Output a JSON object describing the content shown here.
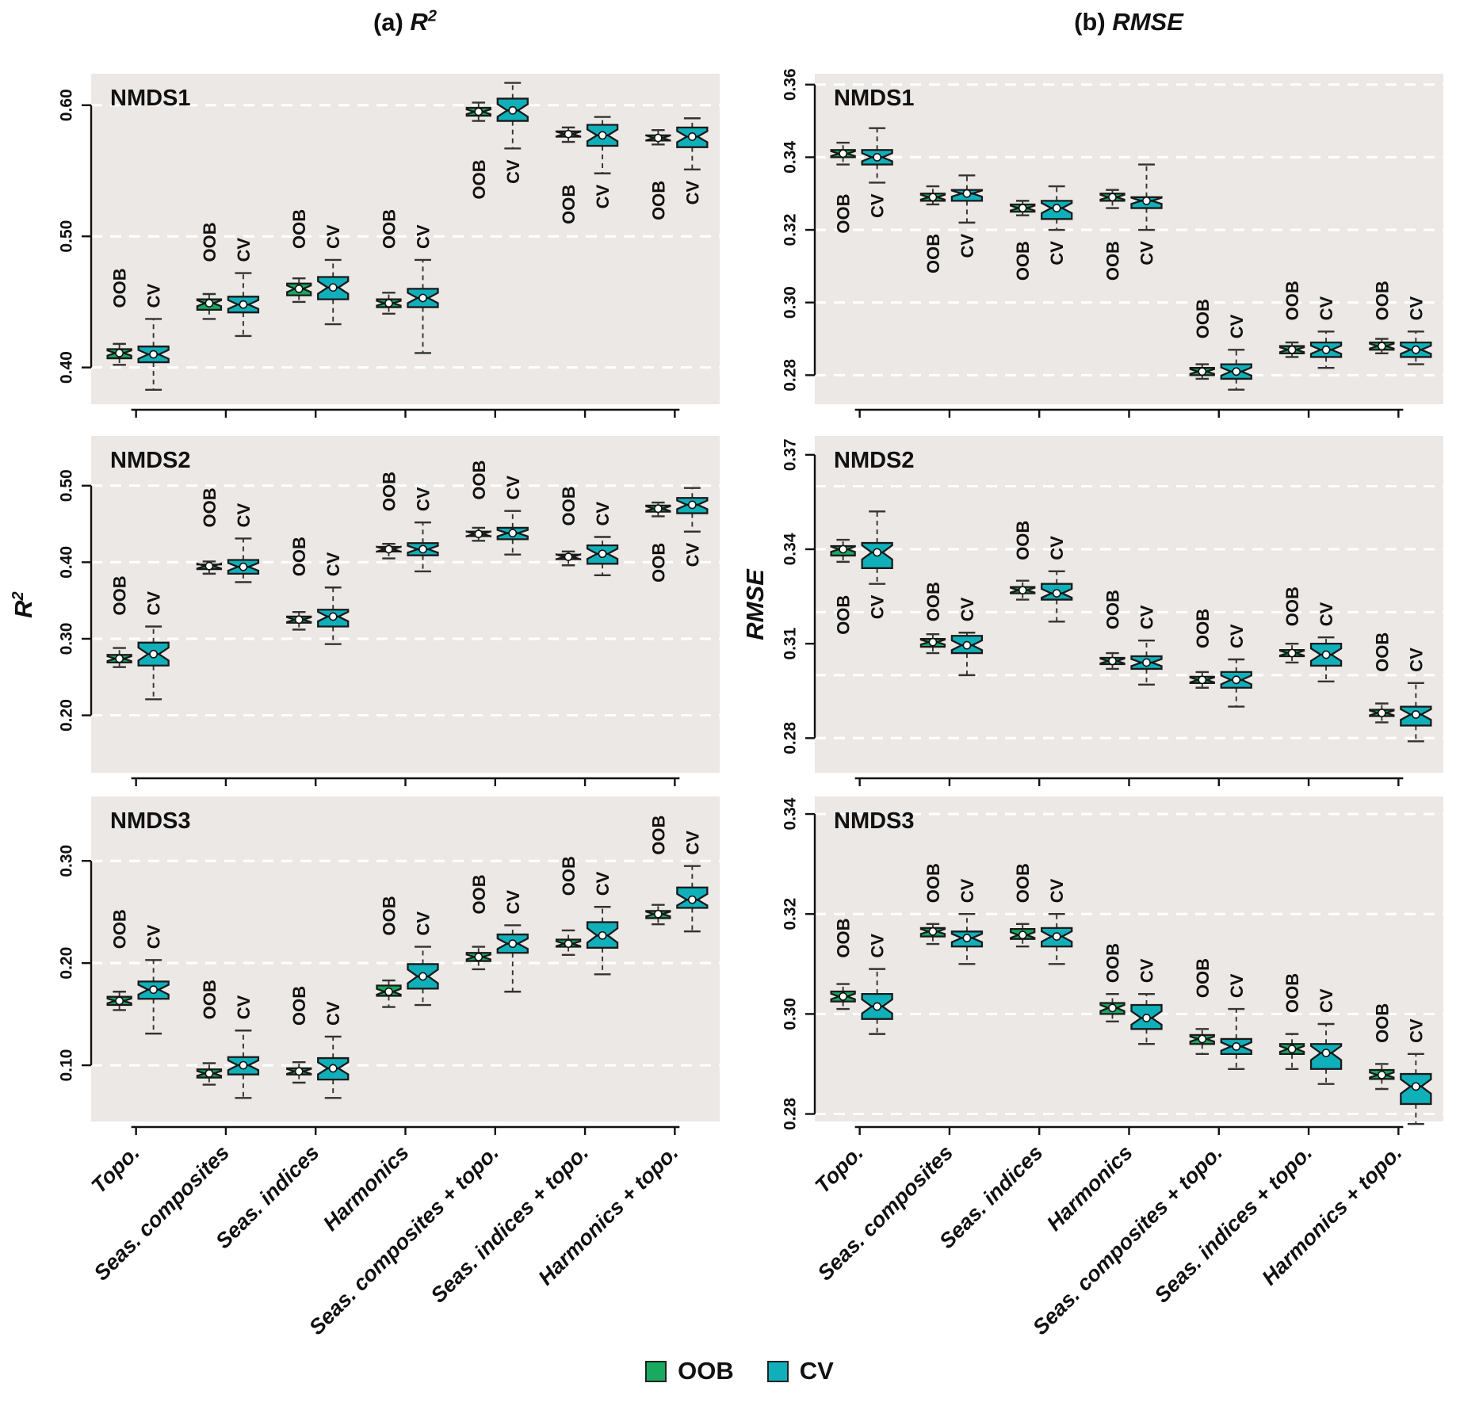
{
  "titles": {
    "a_prefix": "(a)",
    "a_metric": "R",
    "a_sup": "2",
    "b_prefix": "(b)",
    "b_metric": "RMSE"
  },
  "y_axis_labels": {
    "left_metric": "R",
    "left_sup": "2",
    "right_metric": "RMSE"
  },
  "legend": {
    "items": [
      {
        "label": "OOB",
        "color": "#17aa60"
      },
      {
        "label": "CV",
        "color": "#10b0ba"
      }
    ]
  },
  "colors": {
    "oob_fill": "#17aa60",
    "cv_fill": "#10b0ba",
    "panel_bg": "#ece8e5",
    "gridline": "#ffffff",
    "box_stroke": "#1a1a1a",
    "whisker": "#333333"
  },
  "chart_data": {
    "type": "boxplot",
    "categories": [
      "Topo.",
      "Seas. composites",
      "Seas. indices",
      "Harmonics",
      "Seas. composites + topo.",
      "Seas. indices + topo.",
      "Harmonics + topo."
    ],
    "series_names": [
      "OOB",
      "CV"
    ],
    "box_format": [
      "whisker_low",
      "q1",
      "median",
      "q3",
      "whisker_high"
    ],
    "panels": [
      {
        "key": "r2-nmds1",
        "panel_label": "NMDS1",
        "metric": "R2",
        "col": 0,
        "row": 0,
        "ylim": [
          0.372,
          0.624
        ],
        "yticks": [
          0.4,
          0.5,
          0.6
        ],
        "ytick_labels": [
          "0.40",
          "0.50",
          "0.60"
        ],
        "gridlines": [
          0.4,
          0.5,
          0.6
        ],
        "label_below": [
          4,
          5,
          6
        ],
        "oob": [
          [
            0.402,
            0.407,
            0.411,
            0.414,
            0.418
          ],
          [
            0.437,
            0.444,
            0.449,
            0.452,
            0.456
          ],
          [
            0.45,
            0.455,
            0.46,
            0.464,
            0.468
          ],
          [
            0.441,
            0.446,
            0.449,
            0.452,
            0.457
          ],
          [
            0.588,
            0.592,
            0.595,
            0.598,
            0.602
          ],
          [
            0.572,
            0.576,
            0.578,
            0.58,
            0.583
          ],
          [
            0.57,
            0.573,
            0.575,
            0.577,
            0.581
          ]
        ],
        "cv": [
          [
            0.383,
            0.404,
            0.41,
            0.416,
            0.437
          ],
          [
            0.424,
            0.442,
            0.448,
            0.454,
            0.472
          ],
          [
            0.433,
            0.452,
            0.461,
            0.469,
            0.482
          ],
          [
            0.411,
            0.446,
            0.453,
            0.46,
            0.482
          ],
          [
            0.567,
            0.588,
            0.596,
            0.605,
            0.617
          ],
          [
            0.548,
            0.569,
            0.577,
            0.585,
            0.591
          ],
          [
            0.551,
            0.568,
            0.576,
            0.583,
            0.59
          ]
        ]
      },
      {
        "key": "rmse-nmds1",
        "panel_label": "NMDS1",
        "metric": "RMSE",
        "col": 1,
        "row": 0,
        "ylim": [
          0.272,
          0.363
        ],
        "yticks": [
          0.28,
          0.3,
          0.32,
          0.34,
          0.36
        ],
        "ytick_labels": [
          "0.28",
          "0.30",
          "0.32",
          "0.34",
          "0.36"
        ],
        "gridlines": [
          0.28,
          0.3,
          0.32,
          0.34,
          0.36
        ],
        "label_below": [
          0,
          1,
          2,
          3
        ],
        "oob": [
          [
            0.338,
            0.34,
            0.341,
            0.342,
            0.344
          ],
          [
            0.327,
            0.328,
            0.329,
            0.33,
            0.332
          ],
          [
            0.324,
            0.325,
            0.326,
            0.327,
            0.328
          ],
          [
            0.326,
            0.328,
            0.329,
            0.33,
            0.331
          ],
          [
            0.279,
            0.28,
            0.281,
            0.282,
            0.283
          ],
          [
            0.285,
            0.286,
            0.287,
            0.288,
            0.289
          ],
          [
            0.286,
            0.287,
            0.288,
            0.289,
            0.29
          ]
        ],
        "cv": [
          [
            0.333,
            0.338,
            0.34,
            0.342,
            0.348
          ],
          [
            0.322,
            0.328,
            0.33,
            0.331,
            0.335
          ],
          [
            0.32,
            0.323,
            0.326,
            0.328,
            0.332
          ],
          [
            0.32,
            0.326,
            0.328,
            0.329,
            0.338
          ],
          [
            0.276,
            0.279,
            0.281,
            0.283,
            0.287
          ],
          [
            0.282,
            0.285,
            0.287,
            0.289,
            0.292
          ],
          [
            0.283,
            0.285,
            0.287,
            0.289,
            0.292
          ]
        ]
      },
      {
        "key": "r2-nmds2",
        "panel_label": "NMDS2",
        "metric": "R2",
        "col": 0,
        "row": 1,
        "ylim": [
          0.125,
          0.565
        ],
        "yticks": [
          0.2,
          0.3,
          0.4,
          0.5
        ],
        "ytick_labels": [
          "0.20",
          "0.30",
          "0.40",
          "0.50"
        ],
        "gridlines": [
          0.2,
          0.3,
          0.4,
          0.5
        ],
        "label_below": [
          6
        ],
        "oob": [
          [
            0.263,
            0.269,
            0.274,
            0.279,
            0.288
          ],
          [
            0.385,
            0.391,
            0.395,
            0.397,
            0.401
          ],
          [
            0.312,
            0.321,
            0.325,
            0.329,
            0.335
          ],
          [
            0.405,
            0.414,
            0.417,
            0.42,
            0.424
          ],
          [
            0.428,
            0.434,
            0.437,
            0.44,
            0.445
          ],
          [
            0.396,
            0.404,
            0.407,
            0.41,
            0.414
          ],
          [
            0.46,
            0.466,
            0.47,
            0.474,
            0.478
          ]
        ],
        "cv": [
          [
            0.221,
            0.265,
            0.28,
            0.295,
            0.316
          ],
          [
            0.374,
            0.385,
            0.394,
            0.403,
            0.431
          ],
          [
            0.293,
            0.316,
            0.329,
            0.338,
            0.367
          ],
          [
            0.388,
            0.409,
            0.417,
            0.425,
            0.452
          ],
          [
            0.41,
            0.43,
            0.438,
            0.445,
            0.467
          ],
          [
            0.383,
            0.398,
            0.411,
            0.422,
            0.433
          ],
          [
            0.44,
            0.464,
            0.475,
            0.484,
            0.497
          ]
        ]
      },
      {
        "key": "rmse-nmds2",
        "panel_label": "NMDS2",
        "metric": "RMSE",
        "col": 1,
        "row": 1,
        "ylim": [
          0.269,
          0.376
        ],
        "yticks": [
          0.28,
          0.31,
          0.34,
          0.37
        ],
        "ytick_labels": [
          "0.28",
          "0.31",
          "0.34",
          "0.37"
        ],
        "gridlines": [
          0.28,
          0.3,
          0.32,
          0.34,
          0.36
        ],
        "label_below": [
          0
        ],
        "oob": [
          [
            0.336,
            0.338,
            0.34,
            0.341,
            0.343
          ],
          [
            0.307,
            0.309,
            0.3105,
            0.3115,
            0.313
          ],
          [
            0.324,
            0.326,
            0.327,
            0.328,
            0.33
          ],
          [
            0.302,
            0.3035,
            0.3045,
            0.3055,
            0.307
          ],
          [
            0.296,
            0.2975,
            0.2985,
            0.2995,
            0.301
          ],
          [
            0.304,
            0.306,
            0.307,
            0.308,
            0.31
          ],
          [
            0.285,
            0.287,
            0.288,
            0.289,
            0.291
          ]
        ],
        "cv": [
          [
            0.329,
            0.334,
            0.339,
            0.342,
            0.352
          ],
          [
            0.3,
            0.307,
            0.3095,
            0.3125,
            0.3135
          ],
          [
            0.317,
            0.324,
            0.326,
            0.329,
            0.333
          ],
          [
            0.297,
            0.302,
            0.304,
            0.306,
            0.311
          ],
          [
            0.29,
            0.296,
            0.2985,
            0.301,
            0.305
          ],
          [
            0.298,
            0.303,
            0.3065,
            0.31,
            0.312
          ],
          [
            0.279,
            0.284,
            0.2875,
            0.29,
            0.2975
          ]
        ]
      },
      {
        "key": "r2-nmds3",
        "panel_label": "NMDS3",
        "metric": "R2",
        "col": 0,
        "row": 2,
        "ylim": [
          0.045,
          0.363
        ],
        "yticks": [
          0.1,
          0.2,
          0.3
        ],
        "ytick_labels": [
          "0.10",
          "0.20",
          "0.30"
        ],
        "gridlines": [
          0.1,
          0.2,
          0.3
        ],
        "label_below": [],
        "oob": [
          [
            0.154,
            0.159,
            0.163,
            0.167,
            0.172
          ],
          [
            0.081,
            0.088,
            0.092,
            0.096,
            0.102
          ],
          [
            0.083,
            0.091,
            0.094,
            0.097,
            0.103
          ],
          [
            0.157,
            0.168,
            0.172,
            0.178,
            0.183
          ],
          [
            0.194,
            0.202,
            0.206,
            0.21,
            0.216
          ],
          [
            0.208,
            0.216,
            0.219,
            0.223,
            0.232
          ],
          [
            0.238,
            0.244,
            0.248,
            0.251,
            0.257
          ]
        ],
        "cv": [
          [
            0.131,
            0.165,
            0.174,
            0.182,
            0.203
          ],
          [
            0.068,
            0.091,
            0.1,
            0.108,
            0.134
          ],
          [
            0.068,
            0.086,
            0.097,
            0.107,
            0.128
          ],
          [
            0.159,
            0.175,
            0.187,
            0.199,
            0.216
          ],
          [
            0.172,
            0.21,
            0.219,
            0.228,
            0.237
          ],
          [
            0.189,
            0.215,
            0.227,
            0.24,
            0.255
          ],
          [
            0.231,
            0.254,
            0.262,
            0.274,
            0.295
          ]
        ]
      },
      {
        "key": "rmse-nmds3",
        "panel_label": "NMDS3",
        "metric": "RMSE",
        "col": 1,
        "row": 2,
        "ylim": [
          0.2785,
          0.3435
        ],
        "yticks": [
          0.28,
          0.3,
          0.32,
          0.34
        ],
        "ytick_labels": [
          "0.28",
          "0.30",
          "0.32",
          "0.34"
        ],
        "gridlines": [
          0.28,
          0.3,
          0.32,
          0.34
        ],
        "label_below": [],
        "oob": [
          [
            0.301,
            0.3025,
            0.3035,
            0.3045,
            0.306
          ],
          [
            0.314,
            0.3155,
            0.3165,
            0.3172,
            0.318
          ],
          [
            0.3135,
            0.315,
            0.3158,
            0.317,
            0.318
          ],
          [
            0.2985,
            0.3,
            0.3012,
            0.3022,
            0.304
          ],
          [
            0.292,
            0.294,
            0.295,
            0.2958,
            0.297
          ],
          [
            0.289,
            0.292,
            0.293,
            0.294,
            0.296
          ],
          [
            0.285,
            0.287,
            0.2878,
            0.2888,
            0.29
          ]
        ],
        "cv": [
          [
            0.296,
            0.299,
            0.3015,
            0.304,
            0.309
          ],
          [
            0.31,
            0.3135,
            0.3152,
            0.3165,
            0.32
          ],
          [
            0.31,
            0.3135,
            0.3155,
            0.3172,
            0.32
          ],
          [
            0.294,
            0.297,
            0.2992,
            0.3018,
            0.304
          ],
          [
            0.289,
            0.292,
            0.2935,
            0.295,
            0.301
          ],
          [
            0.286,
            0.289,
            0.2922,
            0.294,
            0.298
          ],
          [
            0.278,
            0.282,
            0.2855,
            0.288,
            0.292
          ]
        ]
      }
    ]
  }
}
